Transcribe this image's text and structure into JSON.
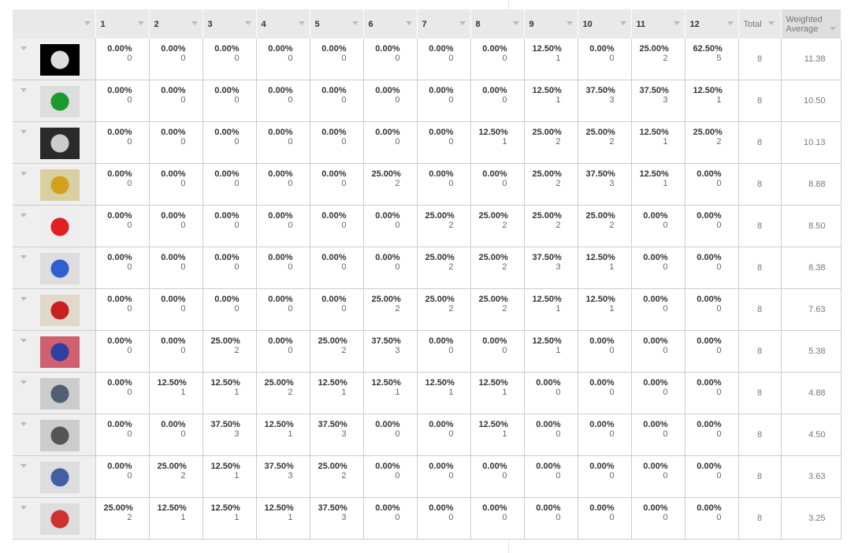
{
  "header": {
    "columns": [
      "1",
      "2",
      "3",
      "4",
      "5",
      "6",
      "7",
      "8",
      "9",
      "10",
      "11",
      "12"
    ],
    "total_label": "Total",
    "weighted_label_1": "Weighted",
    "weighted_label_2": "Average"
  },
  "thumb_colors": [
    [
      "#000",
      "#ddd"
    ],
    [
      "#ddd",
      "#1a9a2a"
    ],
    [
      "#2a2a2a",
      "#ccc"
    ],
    [
      "#d8d0a0",
      "#d4a020"
    ],
    [
      "#eee",
      "#e02020"
    ],
    [
      "#ddd",
      "#3060d0"
    ],
    [
      "#e0d8c8",
      "#c82020"
    ],
    [
      "#d06070",
      "#3040a0"
    ],
    [
      "#ccc",
      "#506070"
    ],
    [
      "#ccc",
      "#555"
    ],
    [
      "#ddd",
      "#4060a0"
    ],
    [
      "#ddd",
      "#d03030"
    ]
  ],
  "rows": [
    {
      "pcts": [
        "0.00%",
        "0.00%",
        "0.00%",
        "0.00%",
        "0.00%",
        "0.00%",
        "0.00%",
        "0.00%",
        "12.50%",
        "0.00%",
        "25.00%",
        "62.50%"
      ],
      "counts": [
        "0",
        "0",
        "0",
        "0",
        "0",
        "0",
        "0",
        "0",
        "1",
        "0",
        "2",
        "5"
      ],
      "total": "8",
      "avg": "11.38"
    },
    {
      "pcts": [
        "0.00%",
        "0.00%",
        "0.00%",
        "0.00%",
        "0.00%",
        "0.00%",
        "0.00%",
        "0.00%",
        "12.50%",
        "37.50%",
        "37.50%",
        "12.50%"
      ],
      "counts": [
        "0",
        "0",
        "0",
        "0",
        "0",
        "0",
        "0",
        "0",
        "1",
        "3",
        "3",
        "1"
      ],
      "total": "8",
      "avg": "10.50"
    },
    {
      "pcts": [
        "0.00%",
        "0.00%",
        "0.00%",
        "0.00%",
        "0.00%",
        "0.00%",
        "0.00%",
        "12.50%",
        "25.00%",
        "25.00%",
        "12.50%",
        "25.00%"
      ],
      "counts": [
        "0",
        "0",
        "0",
        "0",
        "0",
        "0",
        "0",
        "1",
        "2",
        "2",
        "1",
        "2"
      ],
      "total": "8",
      "avg": "10.13"
    },
    {
      "pcts": [
        "0.00%",
        "0.00%",
        "0.00%",
        "0.00%",
        "0.00%",
        "25.00%",
        "0.00%",
        "0.00%",
        "25.00%",
        "37.50%",
        "12.50%",
        "0.00%"
      ],
      "counts": [
        "0",
        "0",
        "0",
        "0",
        "0",
        "2",
        "0",
        "0",
        "2",
        "3",
        "1",
        "0"
      ],
      "total": "8",
      "avg": "8.88"
    },
    {
      "pcts": [
        "0.00%",
        "0.00%",
        "0.00%",
        "0.00%",
        "0.00%",
        "0.00%",
        "25.00%",
        "25.00%",
        "25.00%",
        "25.00%",
        "0.00%",
        "0.00%"
      ],
      "counts": [
        "0",
        "0",
        "0",
        "0",
        "0",
        "0",
        "2",
        "2",
        "2",
        "2",
        "0",
        "0"
      ],
      "total": "8",
      "avg": "8.50"
    },
    {
      "pcts": [
        "0.00%",
        "0.00%",
        "0.00%",
        "0.00%",
        "0.00%",
        "0.00%",
        "25.00%",
        "25.00%",
        "37.50%",
        "12.50%",
        "0.00%",
        "0.00%"
      ],
      "counts": [
        "0",
        "0",
        "0",
        "0",
        "0",
        "0",
        "2",
        "2",
        "3",
        "1",
        "0",
        "0"
      ],
      "total": "8",
      "avg": "8.38"
    },
    {
      "pcts": [
        "0.00%",
        "0.00%",
        "0.00%",
        "0.00%",
        "0.00%",
        "25.00%",
        "25.00%",
        "25.00%",
        "12.50%",
        "12.50%",
        "0.00%",
        "0.00%"
      ],
      "counts": [
        "0",
        "0",
        "0",
        "0",
        "0",
        "2",
        "2",
        "2",
        "1",
        "1",
        "0",
        "0"
      ],
      "total": "8",
      "avg": "7.63"
    },
    {
      "pcts": [
        "0.00%",
        "0.00%",
        "25.00%",
        "0.00%",
        "25.00%",
        "37.50%",
        "0.00%",
        "0.00%",
        "12.50%",
        "0.00%",
        "0.00%",
        "0.00%"
      ],
      "counts": [
        "0",
        "0",
        "2",
        "0",
        "2",
        "3",
        "0",
        "0",
        "1",
        "0",
        "0",
        "0"
      ],
      "total": "8",
      "avg": "5.38"
    },
    {
      "pcts": [
        "0.00%",
        "12.50%",
        "12.50%",
        "25.00%",
        "12.50%",
        "12.50%",
        "12.50%",
        "12.50%",
        "0.00%",
        "0.00%",
        "0.00%",
        "0.00%"
      ],
      "counts": [
        "0",
        "1",
        "1",
        "2",
        "1",
        "1",
        "1",
        "1",
        "0",
        "0",
        "0",
        "0"
      ],
      "total": "8",
      "avg": "4.88"
    },
    {
      "pcts": [
        "0.00%",
        "0.00%",
        "37.50%",
        "12.50%",
        "37.50%",
        "0.00%",
        "0.00%",
        "12.50%",
        "0.00%",
        "0.00%",
        "0.00%",
        "0.00%"
      ],
      "counts": [
        "0",
        "0",
        "3",
        "1",
        "3",
        "0",
        "0",
        "1",
        "0",
        "0",
        "0",
        "0"
      ],
      "total": "8",
      "avg": "4.50"
    },
    {
      "pcts": [
        "0.00%",
        "25.00%",
        "12.50%",
        "37.50%",
        "25.00%",
        "0.00%",
        "0.00%",
        "0.00%",
        "0.00%",
        "0.00%",
        "0.00%",
        "0.00%"
      ],
      "counts": [
        "0",
        "2",
        "1",
        "3",
        "2",
        "0",
        "0",
        "0",
        "0",
        "0",
        "0",
        "0"
      ],
      "total": "8",
      "avg": "3.63"
    },
    {
      "pcts": [
        "25.00%",
        "12.50%",
        "12.50%",
        "12.50%",
        "37.50%",
        "0.00%",
        "0.00%",
        "0.00%",
        "0.00%",
        "0.00%",
        "0.00%",
        "0.00%"
      ],
      "counts": [
        "2",
        "1",
        "1",
        "1",
        "3",
        "0",
        "0",
        "0",
        "0",
        "0",
        "0",
        "0"
      ],
      "total": "8",
      "avg": "3.25"
    }
  ]
}
